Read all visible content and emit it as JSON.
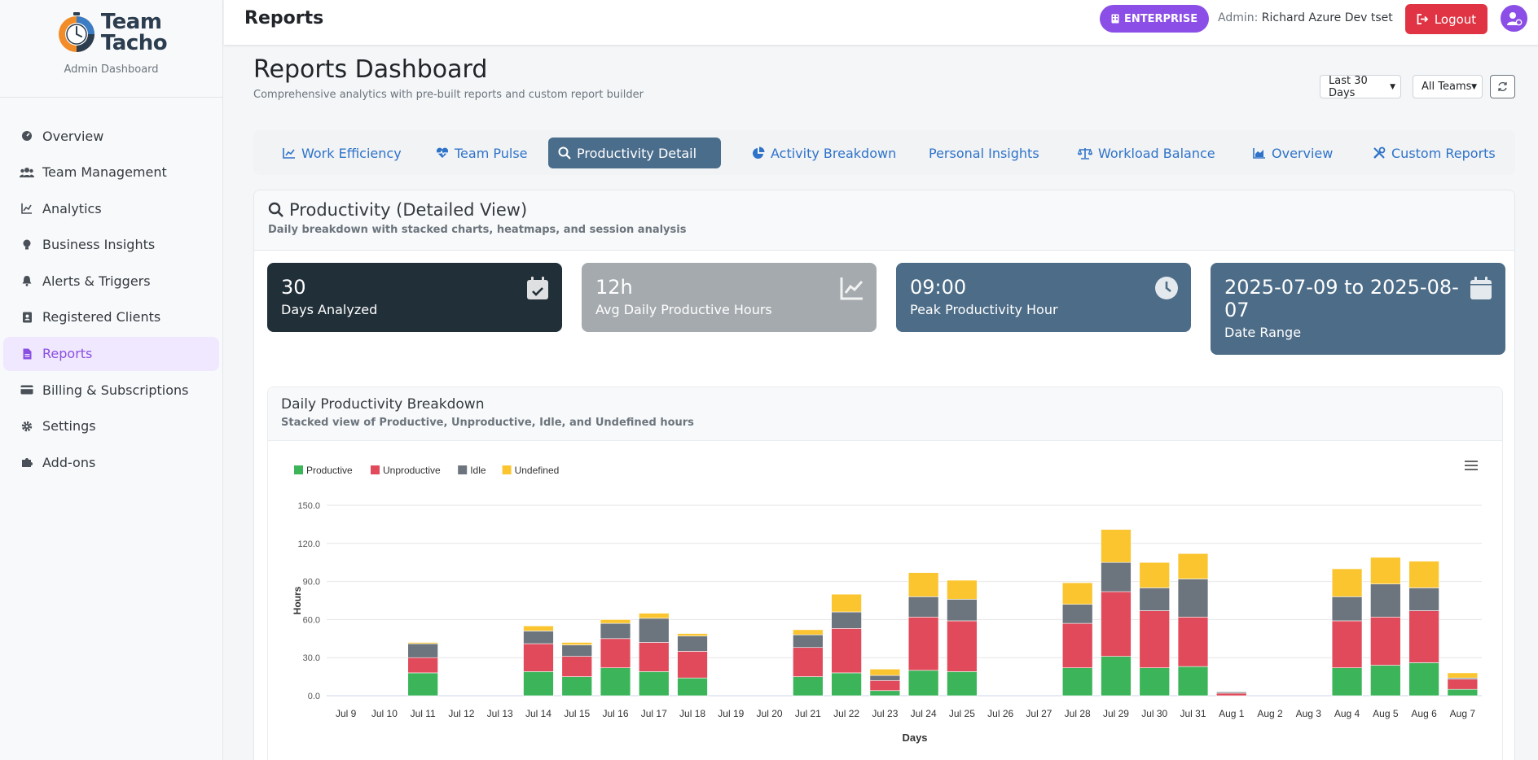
{
  "brand": {
    "name_line1": "Team",
    "name_line2": "Tacho",
    "subtitle": "Admin Dashboard"
  },
  "sidebar": {
    "items": [
      {
        "label": "Overview",
        "icon": "gauge-icon"
      },
      {
        "label": "Team Management",
        "icon": "users-icon"
      },
      {
        "label": "Analytics",
        "icon": "chart-line-icon"
      },
      {
        "label": "Business Insights",
        "icon": "lightbulb-icon"
      },
      {
        "label": "Alerts & Triggers",
        "icon": "bell-icon"
      },
      {
        "label": "Registered Clients",
        "icon": "address-book-icon"
      },
      {
        "label": "Reports",
        "icon": "file-icon",
        "active": true
      },
      {
        "label": "Billing & Subscriptions",
        "icon": "credit-card-icon"
      },
      {
        "label": "Settings",
        "icon": "gear-icon"
      },
      {
        "label": "Add-ons",
        "icon": "puzzle-icon"
      }
    ]
  },
  "header": {
    "title": "Reports",
    "badge": "ENTERPRISE",
    "admin_prefix": "Admin:",
    "admin_name": "Richard Azure Dev tset",
    "logout_label": "Logout"
  },
  "page": {
    "title": "Reports Dashboard",
    "subtitle": "Comprehensive analytics with pre-built reports and custom report builder",
    "range_select": "Last 30 Days",
    "team_select": "All Teams"
  },
  "tabs": [
    {
      "label": "Work Efficiency",
      "icon": "chart-line-icon"
    },
    {
      "label": "Team Pulse",
      "icon": "heart-pulse-icon"
    },
    {
      "label": "Productivity Detail",
      "icon": "search-icon",
      "active": true
    },
    {
      "label": "Activity Breakdown",
      "icon": "pie-chart-icon"
    },
    {
      "label": "Personal Insights",
      "icon": ""
    },
    {
      "label": "Workload Balance",
      "icon": "balance-scale-icon"
    },
    {
      "label": "Overview",
      "icon": "area-chart-icon"
    },
    {
      "label": "Custom Reports",
      "icon": "tools-icon"
    }
  ],
  "panel": {
    "title": "Productivity (Detailed View)",
    "subtitle": "Daily breakdown with stacked charts, heatmaps, and session analysis"
  },
  "stats": [
    {
      "value": "30",
      "label": "Days Analyzed",
      "icon": "calendar-check-icon",
      "color": "#212f38"
    },
    {
      "value": "12h",
      "label": "Avg Daily Productive Hours",
      "icon": "chart-line-icon",
      "color": "#a5aaae"
    },
    {
      "value": "09:00",
      "label": "Peak Productivity Hour",
      "icon": "clock-icon",
      "color": "#4d6c87"
    },
    {
      "value": "2025-07-09 to 2025-08-07",
      "label": "Date Range",
      "icon": "calendar-icon",
      "color": "#4d6c87"
    }
  ],
  "chart_card": {
    "title": "Daily Productivity Breakdown",
    "subtitle": "Stacked view of Productive, Unproductive, Idle, and Undefined hours"
  },
  "chart_data": {
    "type": "bar",
    "stacked": true,
    "title": "Daily Productivity Breakdown",
    "xlabel": "Days",
    "ylabel": "Hours",
    "ylim": [
      0,
      150
    ],
    "yticks": [
      "0.0",
      "30.0",
      "60.0",
      "90.0",
      "120.0",
      "150.0"
    ],
    "categories": [
      "Jul 9",
      "Jul 10",
      "Jul 11",
      "Jul 12",
      "Jul 13",
      "Jul 14",
      "Jul 15",
      "Jul 16",
      "Jul 17",
      "Jul 18",
      "Jul 19",
      "Jul 20",
      "Jul 21",
      "Jul 22",
      "Jul 23",
      "Jul 24",
      "Jul 25",
      "Jul 26",
      "Jul 27",
      "Jul 28",
      "Jul 29",
      "Jul 30",
      "Jul 31",
      "Aug 1",
      "Aug 2",
      "Aug 3",
      "Aug 4",
      "Aug 5",
      "Aug 6",
      "Aug 7"
    ],
    "series": [
      {
        "name": "Productive",
        "color": "#3cb55a",
        "values": [
          0,
          0,
          18,
          0,
          0,
          19,
          15,
          22,
          19,
          14,
          0,
          0,
          15,
          18,
          4,
          20,
          19,
          0,
          0,
          22,
          31,
          22,
          23,
          0,
          0,
          0,
          22,
          24,
          26,
          5
        ]
      },
      {
        "name": "Unproductive",
        "color": "#e04a5a",
        "values": [
          0,
          0,
          12,
          0,
          0,
          22,
          16,
          23,
          23,
          21,
          0,
          0,
          23,
          35,
          8,
          42,
          40,
          0,
          0,
          35,
          51,
          45,
          39,
          2,
          0,
          0,
          37,
          38,
          41,
          8
        ]
      },
      {
        "name": "Idle",
        "color": "#6c757d",
        "values": [
          0,
          0,
          11,
          0,
          0,
          10,
          9,
          12,
          19,
          12,
          0,
          0,
          10,
          13,
          4,
          16,
          17,
          0,
          0,
          15,
          23,
          18,
          30,
          1,
          0,
          0,
          19,
          26,
          18,
          1
        ]
      },
      {
        "name": "Undefined",
        "color": "#fbc530",
        "values": [
          0,
          0,
          1,
          0,
          0,
          4,
          2,
          3,
          4,
          2,
          0,
          0,
          4,
          14,
          5,
          19,
          15,
          0,
          0,
          17,
          26,
          20,
          20,
          0,
          0,
          0,
          22,
          21,
          21,
          4
        ]
      }
    ]
  }
}
